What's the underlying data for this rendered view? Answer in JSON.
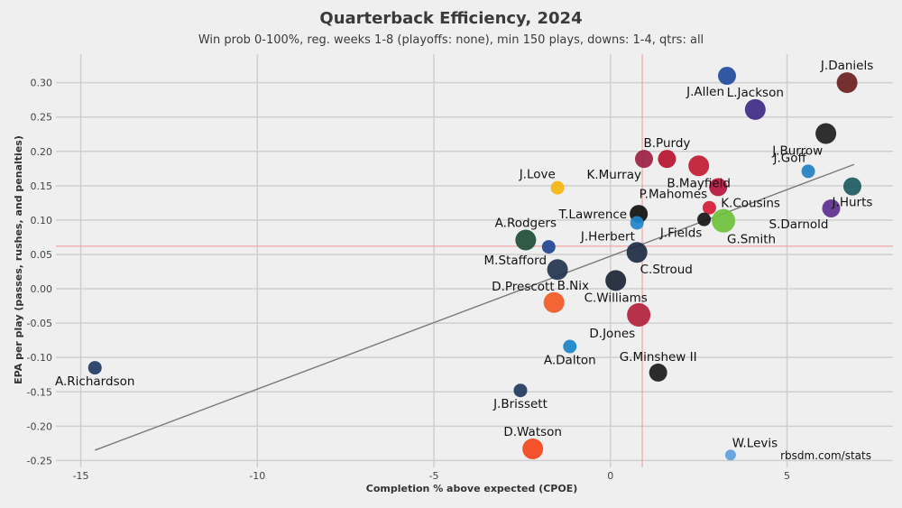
{
  "chart_data": {
    "type": "scatter",
    "title": "Quarterback Efficiency, 2024",
    "subtitle": "Win prob 0-100%, reg. weeks 1-8 (playoffs: none), min 150 plays, downs: 1-4, qtrs: all",
    "xlabel": "Completion % above expected (CPOE)",
    "ylabel": "EPA per play (passes, rushes, and penalties)",
    "credit": "rbsdm.com/stats",
    "xlim": [
      -15.5,
      8
    ],
    "ylim": [
      -0.26,
      0.335
    ],
    "x_ticks": [
      -15,
      -10,
      -5,
      0,
      5
    ],
    "y_ticks": [
      0.3,
      0.25,
      0.2,
      0.15,
      0.1,
      0.05,
      0.0,
      -0.05,
      -0.1,
      -0.15,
      -0.2,
      -0.25
    ],
    "x_tick_labels": [
      "-15",
      "-10",
      "-5",
      "0",
      "5"
    ],
    "y_tick_labels": [
      "0.30",
      "0.25",
      "0.20",
      "0.15",
      "0.10",
      "0.05",
      "0.00",
      "-0.05",
      "-0.10",
      "-0.15",
      "-0.20",
      "-0.25"
    ],
    "mean_x": 0.9,
    "mean_y": 0.062,
    "trendline": [
      [
        -14.6,
        -0.235
      ],
      [
        6.9,
        0.181
      ]
    ],
    "colors": {
      "grid": "#cfcfcf",
      "mean_line": "#f19595",
      "trend": "#7a7a7a",
      "background": "#efefef"
    },
    "points": [
      {
        "name": "J.Daniels",
        "x": 6.7,
        "y": 0.3,
        "size": "l",
        "color": "#6b2020",
        "label_pos": "above"
      },
      {
        "name": "J.Allen",
        "x": 3.3,
        "y": 0.31,
        "size": "m",
        "color": "#1f4b9c",
        "label_pos": "below-left"
      },
      {
        "name": "L.Jackson",
        "x": 4.1,
        "y": 0.261,
        "size": "l",
        "color": "#3e2a87",
        "label_pos": "above"
      },
      {
        "name": "J.Burrow",
        "x": 6.1,
        "y": 0.226,
        "size": "l",
        "color": "#1e1e1e",
        "label_pos": "below-left"
      },
      {
        "name": "B.Purdy",
        "x": 1.6,
        "y": 0.189,
        "size": "m",
        "color": "#b5122d",
        "label_pos": "above"
      },
      {
        "name": "K.Murray",
        "x": 0.95,
        "y": 0.189,
        "size": "m",
        "color": "#9c2242",
        "label_pos": "below-left"
      },
      {
        "name": "B.Mayfield",
        "x": 2.5,
        "y": 0.179,
        "size": "l",
        "color": "#c21a35",
        "label_pos": "below"
      },
      {
        "name": "J.Goff",
        "x": 5.6,
        "y": 0.171,
        "size": "s",
        "color": "#1f7fc0",
        "label_pos": "above-left"
      },
      {
        "name": "J.Love",
        "x": -1.5,
        "y": 0.147,
        "size": "s",
        "color": "#f5b40f",
        "label_pos": "above-left"
      },
      {
        "name": "K.Cousins",
        "x": 3.05,
        "y": 0.148,
        "size": "m",
        "color": "#b3153b",
        "label_pos": "below-right"
      },
      {
        "name": "J.Hurts",
        "x": 6.85,
        "y": 0.149,
        "size": "m",
        "color": "#1c5a60",
        "label_pos": "below"
      },
      {
        "name": "P.Mahomes",
        "x": 2.8,
        "y": 0.118,
        "size": "s",
        "color": "#d51b35",
        "label_pos": "above-left"
      },
      {
        "name": "S.Darnold",
        "x": 6.25,
        "y": 0.117,
        "size": "m",
        "color": "#5d2f8f",
        "label_pos": "below-left"
      },
      {
        "name": "T.Lawrence",
        "x": 0.8,
        "y": 0.109,
        "size": "m",
        "color": "#101010",
        "label_pos": "left"
      },
      {
        "name": "J.Herbert",
        "x": 0.75,
        "y": 0.096,
        "size": "s",
        "color": "#1f86c9",
        "label_pos": "below-left"
      },
      {
        "name": "J.Fields",
        "x": 2.65,
        "y": 0.101,
        "size": "s",
        "color": "#151515",
        "label_pos": "below-left"
      },
      {
        "name": "G.Smith",
        "x": 3.2,
        "y": 0.099,
        "size": "xl",
        "color": "#6cc23c",
        "label_pos": "below-right"
      },
      {
        "name": "A.Rodgers",
        "x": -2.4,
        "y": 0.071,
        "size": "l",
        "color": "#1e4d36",
        "label_pos": "above"
      },
      {
        "name": "M.Stafford",
        "x": -1.75,
        "y": 0.061,
        "size": "s",
        "color": "#1f4595",
        "label_pos": "below-left"
      },
      {
        "name": "C.Stroud",
        "x": 0.75,
        "y": 0.053,
        "size": "l",
        "color": "#1d2d44",
        "label_pos": "below-right"
      },
      {
        "name": "D.Prescott",
        "x": -1.5,
        "y": 0.028,
        "size": "l",
        "color": "#23344e",
        "label_pos": "below-left"
      },
      {
        "name": "C.Williams",
        "x": 0.15,
        "y": 0.012,
        "size": "l",
        "color": "#1b2535",
        "label_pos": "below"
      },
      {
        "name": "B.Nix",
        "x": -1.6,
        "y": -0.02,
        "size": "l",
        "color": "#f15a24",
        "label_pos": "above-right"
      },
      {
        "name": "D.Jones",
        "x": 0.8,
        "y": -0.038,
        "size": "xl",
        "color": "#b3213d",
        "label_pos": "below-left"
      },
      {
        "name": "A.Dalton",
        "x": -1.15,
        "y": -0.084,
        "size": "s",
        "color": "#1a83c9",
        "label_pos": "below"
      },
      {
        "name": "A.Richardson",
        "x": -14.6,
        "y": -0.115,
        "size": "s",
        "color": "#213b63",
        "label_pos": "below"
      },
      {
        "name": "G.Minshew II",
        "x": 1.35,
        "y": -0.122,
        "size": "m",
        "color": "#1a1a1a",
        "label_pos": "above"
      },
      {
        "name": "J.Brissett",
        "x": -2.55,
        "y": -0.148,
        "size": "s",
        "color": "#213a5c",
        "label_pos": "below"
      },
      {
        "name": "D.Watson",
        "x": -2.2,
        "y": -0.233,
        "size": "l",
        "color": "#f5451b",
        "label_pos": "above"
      },
      {
        "name": "W.Levis",
        "x": 3.4,
        "y": -0.242,
        "size": "xs",
        "color": "#5f9fe0",
        "label_pos": "above-right"
      }
    ]
  }
}
